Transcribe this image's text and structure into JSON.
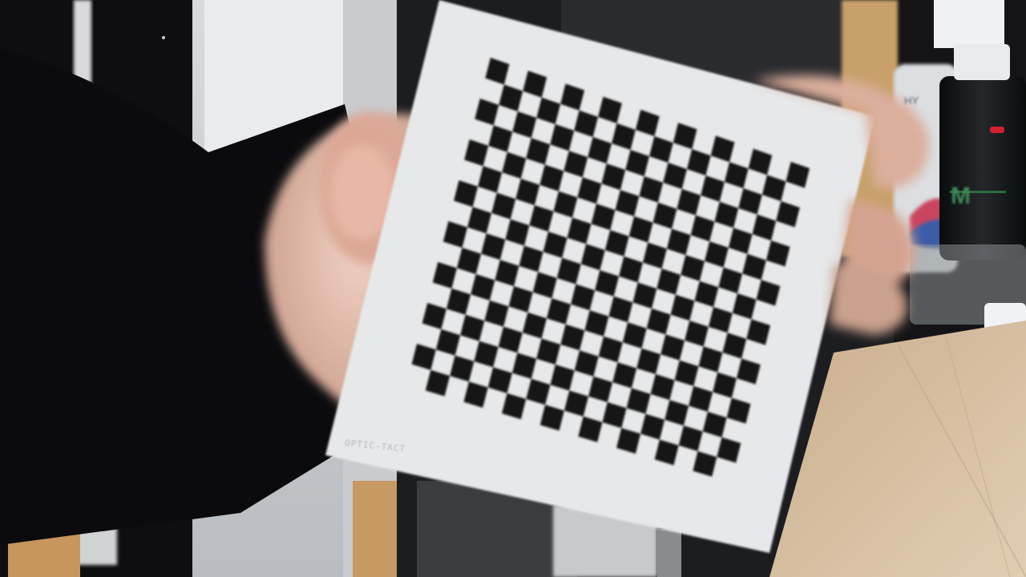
{
  "scene": {
    "description_tags": [
      "hand-holding-calibration-card",
      "checkerboard-pattern",
      "desk",
      "bottles"
    ],
    "colors": {
      "card": "#e6e8ea",
      "square": "#141416",
      "skin": "#d9b3a3",
      "sleeve": "#0b0b0d",
      "desk": "#d2b89a",
      "wall": "#e2e4e6",
      "bottle_dark": "#111214"
    }
  },
  "checkerboard": {
    "rows": 16,
    "cols": 17
  },
  "card": {
    "corner_label": "OPTIC-TACT"
  },
  "bottle": {
    "brand_partial": "HY",
    "letter": "M"
  }
}
